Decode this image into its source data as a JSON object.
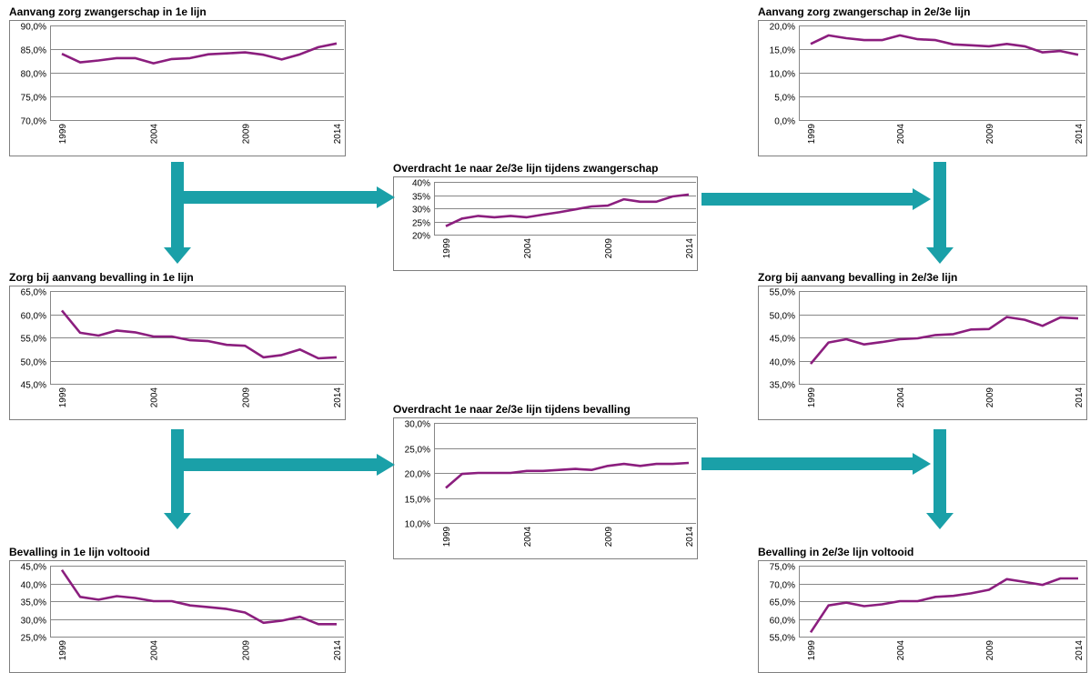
{
  "colors": {
    "line": "#8b1e7e",
    "arrow": "#1aa0a8",
    "grid": "#878787",
    "frame": "#7f7f7f"
  },
  "chart_data": [
    {
      "id": "c1",
      "type": "line",
      "title": "Aanvang zorg zwangerschap in 1e lijn",
      "xticks": [
        "1999",
        "2004",
        "2009",
        "2014"
      ],
      "ylim": [
        70,
        90
      ],
      "yticks": [
        70,
        75,
        80,
        85,
        90
      ],
      "ydec": 1,
      "ysuffix": ",0%",
      "x": [
        1999,
        2000,
        2001,
        2002,
        2003,
        2004,
        2005,
        2006,
        2007,
        2008,
        2009,
        2010,
        2011,
        2012,
        2013,
        2014
      ],
      "values": [
        84.0,
        82.2,
        82.6,
        83.1,
        83.1,
        82.0,
        82.9,
        83.1,
        83.9,
        84.1,
        84.3,
        83.8,
        82.8,
        83.9,
        85.4,
        86.2
      ]
    },
    {
      "id": "c2",
      "type": "line",
      "title": "Aanvang zorg zwangerschap in 2e/3e lijn",
      "xticks": [
        "1999",
        "2004",
        "2009",
        "2014"
      ],
      "ylim": [
        0,
        20
      ],
      "yticks": [
        0,
        5,
        10,
        15,
        20
      ],
      "ydec": 1,
      "ysuffix": ",0%",
      "x": [
        1999,
        2000,
        2001,
        2002,
        2003,
        2004,
        2005,
        2006,
        2007,
        2008,
        2009,
        2010,
        2011,
        2012,
        2013,
        2014
      ],
      "values": [
        16.1,
        17.9,
        17.3,
        16.9,
        16.9,
        17.9,
        17.1,
        16.9,
        16.0,
        15.8,
        15.6,
        16.1,
        15.6,
        14.3,
        14.6,
        13.8
      ]
    },
    {
      "id": "c3",
      "type": "line",
      "title": "Overdracht 1e naar 2e/3e lijn tijdens zwangerschap",
      "xticks": [
        "1999",
        "2004",
        "2009",
        "2014"
      ],
      "ylim": [
        20,
        40
      ],
      "yticks": [
        20,
        25,
        30,
        35,
        40
      ],
      "ydec": 0,
      "ysuffix": "%",
      "x": [
        1999,
        2000,
        2001,
        2002,
        2003,
        2004,
        2005,
        2006,
        2007,
        2008,
        2009,
        2010,
        2011,
        2012,
        2013,
        2014
      ],
      "values": [
        23.2,
        26.1,
        27.1,
        26.6,
        27.1,
        26.6,
        27.6,
        28.5,
        29.6,
        30.7,
        31.0,
        33.4,
        32.5,
        32.5,
        34.5,
        35.2
      ]
    },
    {
      "id": "c4",
      "type": "line",
      "title": "Zorg bij aanvang bevalling in 1e lijn",
      "xticks": [
        "1999",
        "2004",
        "2009",
        "2014"
      ],
      "ylim": [
        45,
        65
      ],
      "yticks": [
        45,
        50,
        55,
        60,
        65
      ],
      "ydec": 1,
      "ysuffix": ",0%",
      "x": [
        1999,
        2000,
        2001,
        2002,
        2003,
        2004,
        2005,
        2006,
        2007,
        2008,
        2009,
        2010,
        2011,
        2012,
        2013,
        2014
      ],
      "values": [
        60.8,
        56.0,
        55.4,
        56.5,
        56.1,
        55.2,
        55.2,
        54.4,
        54.2,
        53.4,
        53.2,
        50.7,
        51.2,
        52.4,
        50.5,
        50.7
      ]
    },
    {
      "id": "c5",
      "type": "line",
      "title": "Zorg bij aanvang bevalling in 2e/3e lijn",
      "xticks": [
        "1999",
        "2004",
        "2009",
        "2014"
      ],
      "ylim": [
        35,
        55
      ],
      "yticks": [
        35,
        40,
        45,
        50,
        55
      ],
      "ydec": 1,
      "ysuffix": ",0%",
      "x": [
        1999,
        2000,
        2001,
        2002,
        2003,
        2004,
        2005,
        2006,
        2007,
        2008,
        2009,
        2010,
        2011,
        2012,
        2013,
        2014
      ],
      "values": [
        39.3,
        43.9,
        44.6,
        43.5,
        44.0,
        44.6,
        44.8,
        45.5,
        45.7,
        46.7,
        46.8,
        49.4,
        48.8,
        47.5,
        49.3,
        49.1
      ]
    },
    {
      "id": "c6",
      "type": "line",
      "title": "Overdracht 1e naar 2e/3e lijn tijdens bevalling",
      "xticks": [
        "1999",
        "2004",
        "2009",
        "2014"
      ],
      "ylim": [
        10,
        30
      ],
      "yticks": [
        10,
        15,
        20,
        25,
        30
      ],
      "ydec": 1,
      "ysuffix": ",0%",
      "x": [
        1999,
        2000,
        2001,
        2002,
        2003,
        2004,
        2005,
        2006,
        2007,
        2008,
        2009,
        2010,
        2011,
        2012,
        2013,
        2014
      ],
      "values": [
        17.0,
        19.8,
        20.0,
        20.0,
        20.0,
        20.4,
        20.4,
        20.6,
        20.8,
        20.6,
        21.4,
        21.8,
        21.4,
        21.8,
        21.8,
        22.0
      ]
    },
    {
      "id": "c7",
      "type": "line",
      "title": "Bevalling in 1e lijn voltooid",
      "xticks": [
        "1999",
        "2004",
        "2009",
        "2014"
      ],
      "ylim": [
        25,
        45
      ],
      "yticks": [
        25,
        30,
        35,
        40,
        45
      ],
      "ydec": 1,
      "ysuffix": ",0%",
      "x": [
        1999,
        2000,
        2001,
        2002,
        2003,
        2004,
        2005,
        2006,
        2007,
        2008,
        2009,
        2010,
        2011,
        2012,
        2013,
        2014
      ],
      "values": [
        43.8,
        36.2,
        35.4,
        36.4,
        35.9,
        35.0,
        35.0,
        33.8,
        33.3,
        32.8,
        31.8,
        28.9,
        29.5,
        30.6,
        28.5,
        28.5
      ]
    },
    {
      "id": "c8",
      "type": "line",
      "title": "Bevalling in 2e/3e lijn voltooid",
      "xticks": [
        "1999",
        "2004",
        "2009",
        "2014"
      ],
      "ylim": [
        55,
        75
      ],
      "yticks": [
        55,
        60,
        65,
        70,
        75
      ],
      "ydec": 1,
      "ysuffix": ",0%",
      "x": [
        1999,
        2000,
        2001,
        2002,
        2003,
        2004,
        2005,
        2006,
        2007,
        2008,
        2009,
        2010,
        2011,
        2012,
        2013,
        2014
      ],
      "values": [
        56.2,
        63.8,
        64.6,
        63.6,
        64.1,
        65.0,
        65.0,
        66.2,
        66.5,
        67.2,
        68.2,
        71.2,
        70.4,
        69.6,
        71.4,
        71.4
      ]
    }
  ]
}
